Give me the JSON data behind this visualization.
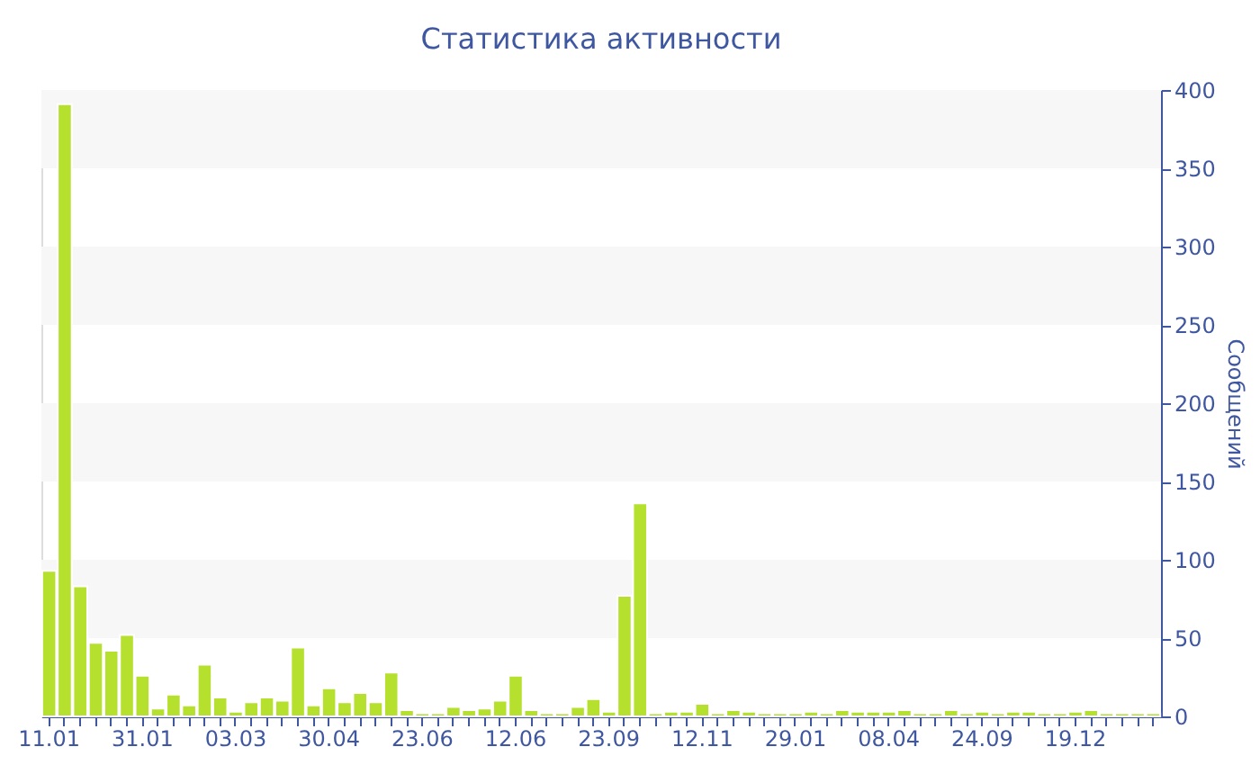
{
  "chart_data": {
    "type": "bar",
    "title": "Статистика активности",
    "ylabel": "Сообщений",
    "categories": [
      "11.01",
      null,
      null,
      null,
      null,
      null,
      "31.01",
      null,
      null,
      null,
      null,
      null,
      "03.03",
      null,
      null,
      null,
      null,
      null,
      "30.04",
      null,
      null,
      null,
      null,
      null,
      "23.06",
      null,
      null,
      null,
      null,
      null,
      "12.06",
      null,
      null,
      null,
      null,
      null,
      "23.09",
      null,
      null,
      null,
      null,
      null,
      "12.11",
      null,
      null,
      null,
      null,
      null,
      "29.01",
      null,
      null,
      null,
      null,
      null,
      "08.04",
      null,
      null,
      null,
      null,
      null,
      "24.09",
      null,
      null,
      null,
      null,
      null,
      "19.12",
      null,
      null,
      null,
      null,
      null
    ],
    "series": [
      {
        "color": "#b5e02e",
        "values": [
          93,
          391,
          83,
          47,
          42,
          52,
          26,
          5,
          14,
          7,
          33,
          12,
          3,
          9,
          12,
          10,
          44,
          7,
          18,
          9,
          15,
          9,
          28,
          4,
          2,
          2,
          6,
          4,
          5,
          10,
          26,
          4,
          2,
          2,
          6,
          11,
          3,
          77,
          136,
          2,
          3,
          3,
          8,
          2,
          4,
          3,
          2,
          2,
          2,
          3,
          2,
          4,
          3,
          3,
          3,
          4,
          2,
          2,
          4,
          2,
          3,
          2,
          3,
          3,
          2,
          2,
          3,
          4,
          2,
          2,
          2,
          2
        ]
      }
    ],
    "ylim": [
      0,
      400
    ],
    "yticks": [
      0,
      50,
      100,
      150,
      200,
      250,
      300,
      350,
      400
    ],
    "grid": false,
    "bands": [
      {
        "axis": "y",
        "from": 50,
        "to": 100,
        "color": "#f7f7f7"
      },
      {
        "axis": "y",
        "from": 150,
        "to": 200,
        "color": "#f7f7f7"
      },
      {
        "axis": "y",
        "from": 250,
        "to": 300,
        "color": "#f7f7f7"
      },
      {
        "axis": "y",
        "from": 350,
        "to": 400,
        "color": "#f7f7f7"
      }
    ]
  }
}
